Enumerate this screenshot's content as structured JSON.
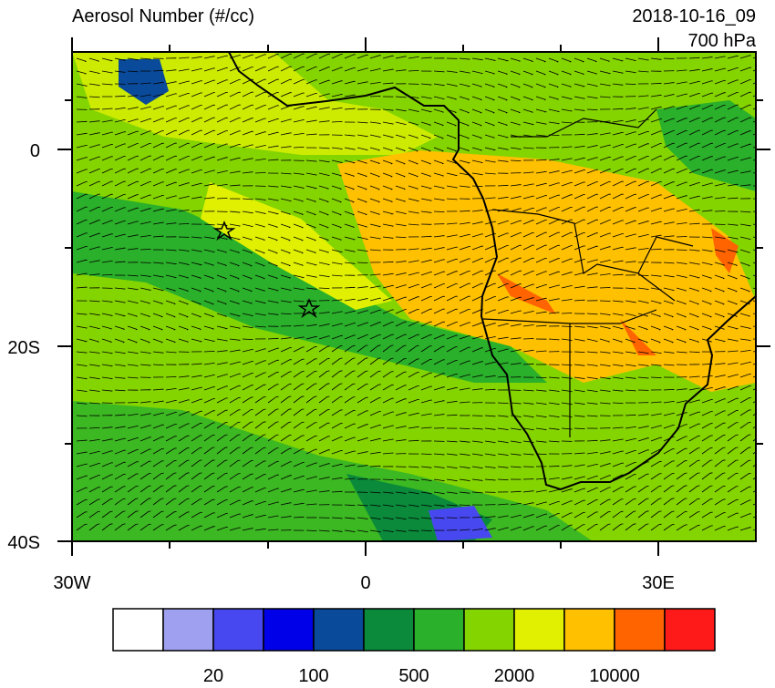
{
  "header": {
    "title": "Aerosol Number (#/cc)",
    "time": "2018-10-16_09",
    "level": "700 hPa"
  },
  "map": {
    "y_labels": [
      "0",
      "20S",
      "40S"
    ],
    "x_labels": [
      "30W",
      "0",
      "30E"
    ]
  },
  "colorbar": {
    "colors": [
      "#ffffff",
      "#a0a0f0",
      "#4848f0",
      "#0000e8",
      "#0a4a9a",
      "#0a8a3a",
      "#2ab02a",
      "#84d400",
      "#e0f000",
      "#ffc000",
      "#ff6400",
      "#ff1a1a"
    ],
    "labels": [
      "20",
      "100",
      "500",
      "2000",
      "10000"
    ]
  }
}
